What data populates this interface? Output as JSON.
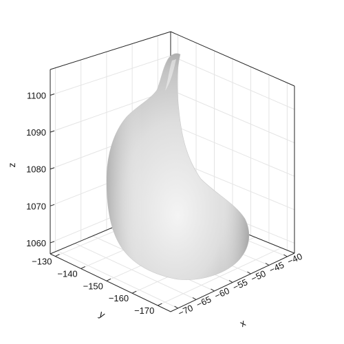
{
  "chart_data": {
    "type": "3d-surface",
    "title": "",
    "axes": {
      "x": {
        "label": "x",
        "range": [
          -72,
          -38
        ],
        "ticks": [
          -70,
          -65,
          -60,
          -55,
          -50,
          -45,
          -40
        ],
        "tick_labels": [
          "−70",
          "−65",
          "−60",
          "−55",
          "−50",
          "−45",
          "−40"
        ]
      },
      "y": {
        "label": "y",
        "range": [
          -175,
          -128
        ],
        "ticks": [
          -130,
          -140,
          -150,
          -160,
          -170
        ],
        "tick_labels": [
          "−130",
          "−140",
          "−150",
          "−160",
          "−170"
        ]
      },
      "z": {
        "label": "z",
        "range": [
          1057,
          1107
        ],
        "ticks": [
          1060,
          1070,
          1080,
          1090,
          1100
        ],
        "tick_labels": [
          "1060",
          "1070",
          "1080",
          "1090",
          "1100"
        ]
      }
    },
    "grid": true,
    "surface": {
      "description_shape": "teardrop",
      "color": "#d6d6d6",
      "shading": "gray"
    },
    "colors": {
      "frame": "#222222",
      "grid": "#e4e4e4",
      "surface_light": "#f2f2f2",
      "surface_dark": "#9a9a9a"
    }
  }
}
